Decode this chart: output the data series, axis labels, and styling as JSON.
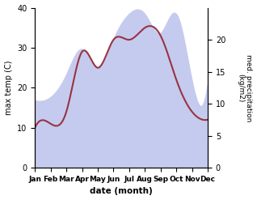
{
  "months": [
    "Jan",
    "Feb",
    "Mar",
    "Apr",
    "May",
    "Jun",
    "Jul",
    "Aug",
    "Sep",
    "Oct",
    "Nov",
    "Dec"
  ],
  "max_temp": [
    10,
    11,
    14,
    29,
    25,
    32,
    32,
    35,
    33,
    22,
    14,
    12
  ],
  "precipitation": [
    10.5,
    11,
    14.5,
    18.5,
    15.5,
    20,
    24,
    24,
    21,
    24,
    13.5,
    13
  ],
  "temp_color": "#993344",
  "precip_fill_color": "#c5cbee",
  "ylim_temp": [
    0,
    40
  ],
  "ylim_precip": [
    0,
    25
  ],
  "ylabel_left": "max temp (C)",
  "ylabel_right": "med. precipitation\n(kg/m2)",
  "xlabel": "date (month)",
  "yticks_left": [
    0,
    10,
    20,
    30,
    40
  ],
  "yticks_right": [
    0,
    5,
    10,
    15,
    20
  ],
  "background_color": "#ffffff"
}
